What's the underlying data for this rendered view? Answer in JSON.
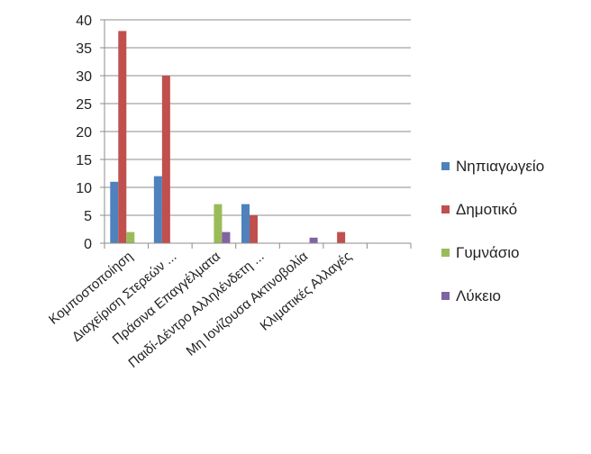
{
  "chart_data": {
    "type": "bar",
    "title": "",
    "xlabel": "",
    "ylabel": "",
    "ylim": [
      0,
      40
    ],
    "yticks": [
      0,
      5,
      10,
      15,
      20,
      25,
      30,
      35,
      40
    ],
    "grid": true,
    "legend_position": "right",
    "categories": [
      "Κομποστοποίηση",
      "Διαχείριση Στερεών ...",
      "Πράσινα Επαγγέλματα",
      "Παιδί-Δέντρο Αλληλένδετη ...",
      "Μη Ιονίζουσα Ακτινοβολία",
      "Κλιματικές Αλλαγές"
    ],
    "series": [
      {
        "name": "Νηπιαγωγείο",
        "color": "#4F81BD",
        "values": [
          11,
          12,
          0,
          7,
          0,
          0
        ]
      },
      {
        "name": "Δημοτικό",
        "color": "#C0504D",
        "values": [
          38,
          30,
          0,
          5,
          0,
          2
        ]
      },
      {
        "name": "Γυμνάσιο",
        "color": "#9BBB59",
        "values": [
          2,
          0,
          7,
          0,
          0,
          0
        ]
      },
      {
        "name": "Λύκειο",
        "color": "#8064A2",
        "values": [
          0,
          0,
          2,
          0,
          1,
          0
        ]
      }
    ]
  }
}
